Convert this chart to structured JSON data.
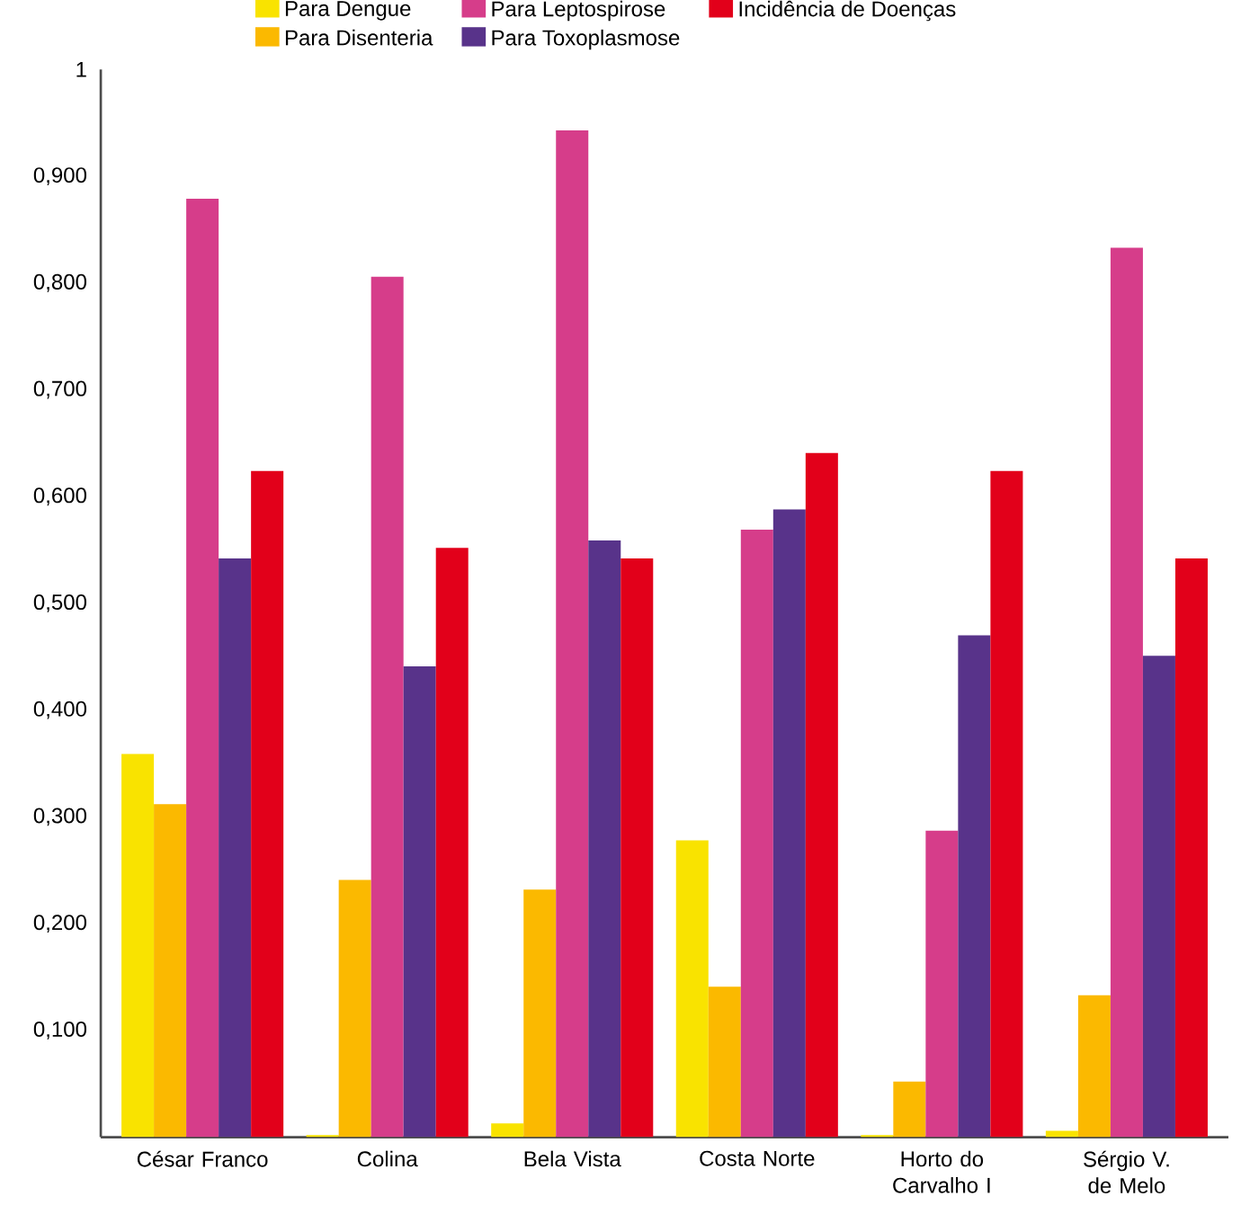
{
  "chart_data": {
    "type": "bar",
    "categories": [
      "César Franco",
      "Colina",
      "Bela Vista",
      "Costa Norte",
      "Horto do Carvalho I",
      "Sérgio V. de Melo"
    ],
    "series": [
      {
        "name": "Para Dengue",
        "color": "#f9e300",
        "values": [
          0.359,
          0.002,
          0.013,
          0.278,
          0.002,
          0.006
        ]
      },
      {
        "name": "Para Disenteria",
        "color": "#fbb900",
        "values": [
          0.312,
          0.241,
          0.232,
          0.141,
          0.052,
          0.133
        ]
      },
      {
        "name": "Para Leptospirose",
        "color": "#d63d8a",
        "values": [
          0.879,
          0.806,
          0.943,
          0.569,
          0.287,
          0.833
        ]
      },
      {
        "name": "Para Toxoplasmose",
        "color": "#58338a",
        "values": [
          0.542,
          0.441,
          0.559,
          0.588,
          0.47,
          0.451
        ]
      },
      {
        "name": "Incidência de Doenças",
        "color": "#e2001a",
        "values": [
          0.624,
          0.552,
          0.542,
          0.641,
          0.624,
          0.542
        ]
      }
    ],
    "ylim": [
      0,
      1
    ],
    "yticks": [
      {
        "value": 0.1,
        "label": "0,100"
      },
      {
        "value": 0.2,
        "label": "0,200"
      },
      {
        "value": 0.3,
        "label": "0,300"
      },
      {
        "value": 0.4,
        "label": "0,400"
      },
      {
        "value": 0.5,
        "label": "0,500"
      },
      {
        "value": 0.6,
        "label": "0,600"
      },
      {
        "value": 0.7,
        "label": "0,700"
      },
      {
        "value": 0.8,
        "label": "0,800"
      },
      {
        "value": 0.9,
        "label": "0,900"
      },
      1
    ],
    "grid": false,
    "legend": "top"
  }
}
